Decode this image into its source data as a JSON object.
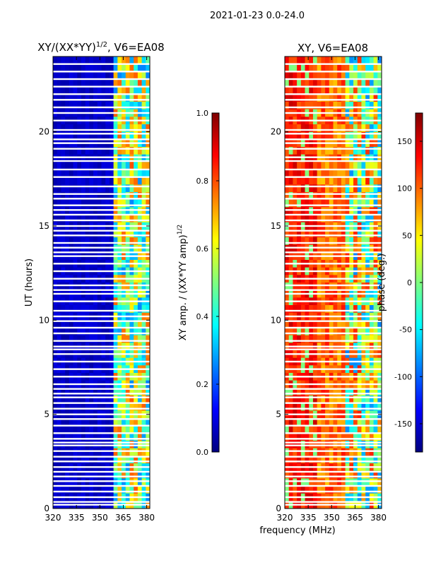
{
  "suptitle": "2021-01-23 0.0-24.0",
  "chart_data": [
    {
      "type": "heatmap",
      "title_prefix": "XY/(XX*YY)",
      "title_exponent": "1/2",
      "title_suffix": ", V6=EA08",
      "xlabel": "",
      "ylabel": "UT (hours)",
      "xlim": [
        320,
        382
      ],
      "ylim": [
        0,
        24
      ],
      "x_ticks": [
        320,
        335,
        350,
        365,
        380
      ],
      "y_ticks": [
        0,
        5,
        10,
        15,
        20
      ],
      "colorbar": {
        "label_prefix": "XY amp. / (XX*YY amp)",
        "label_exponent": "1/2",
        "range": [
          0.0,
          1.0
        ],
        "ticks": [
          "0.0",
          "0.2",
          "0.4",
          "0.6",
          "0.8",
          "1.0"
        ],
        "tick_values": [
          0.0,
          0.2,
          0.4,
          0.6,
          0.8,
          1.0
        ]
      },
      "description_values": {
        "low_band_value": 0.05,
        "high_band_start_mhz": 360,
        "high_band_value_range": [
          0.2,
          0.9
        ]
      }
    },
    {
      "type": "heatmap",
      "title": "XY, V6=EA08",
      "xlabel": "frequency (MHz)",
      "ylabel": "",
      "xlim": [
        320,
        382
      ],
      "ylim": [
        0,
        24
      ],
      "x_ticks": [
        320,
        335,
        350,
        365,
        380
      ],
      "y_ticks": [
        0,
        5,
        10,
        15,
        20
      ],
      "colorbar": {
        "label": "phase (deg.)",
        "range": [
          -180,
          180
        ],
        "ticks": [
          "-150",
          "-100",
          "-50",
          "0",
          "50",
          "100",
          "150"
        ],
        "tick_values": [
          -150,
          -100,
          -50,
          0,
          50,
          100,
          150
        ]
      }
    }
  ],
  "gap_hours": [
    0.2,
    0.35,
    0.6,
    0.9,
    1.2,
    1.45,
    1.7,
    1.95,
    2.2,
    2.5,
    2.75,
    3.05,
    3.35,
    3.5,
    3.7,
    4.0,
    4.4,
    4.75,
    5.0,
    5.3,
    5.6,
    5.9,
    6.1,
    6.35,
    6.6,
    7.0,
    7.4,
    7.8,
    8.2,
    8.45,
    8.6,
    8.9,
    9.3,
    9.6,
    9.95,
    10.2,
    10.5,
    11.0,
    11.4,
    11.6,
    11.85,
    12.2,
    12.6,
    13.0,
    13.4,
    13.6,
    13.85,
    14.1,
    14.5,
    14.75,
    15.0,
    15.3,
    15.6,
    15.85,
    16.1,
    16.45,
    16.7,
    17.1,
    17.6,
    18.0,
    18.45,
    18.65,
    19.1,
    19.4,
    19.6,
    19.9,
    20.1,
    20.6,
    21.0,
    21.3,
    21.7,
    22.0,
    22.4,
    22.8,
    23.2,
    23.6
  ]
}
